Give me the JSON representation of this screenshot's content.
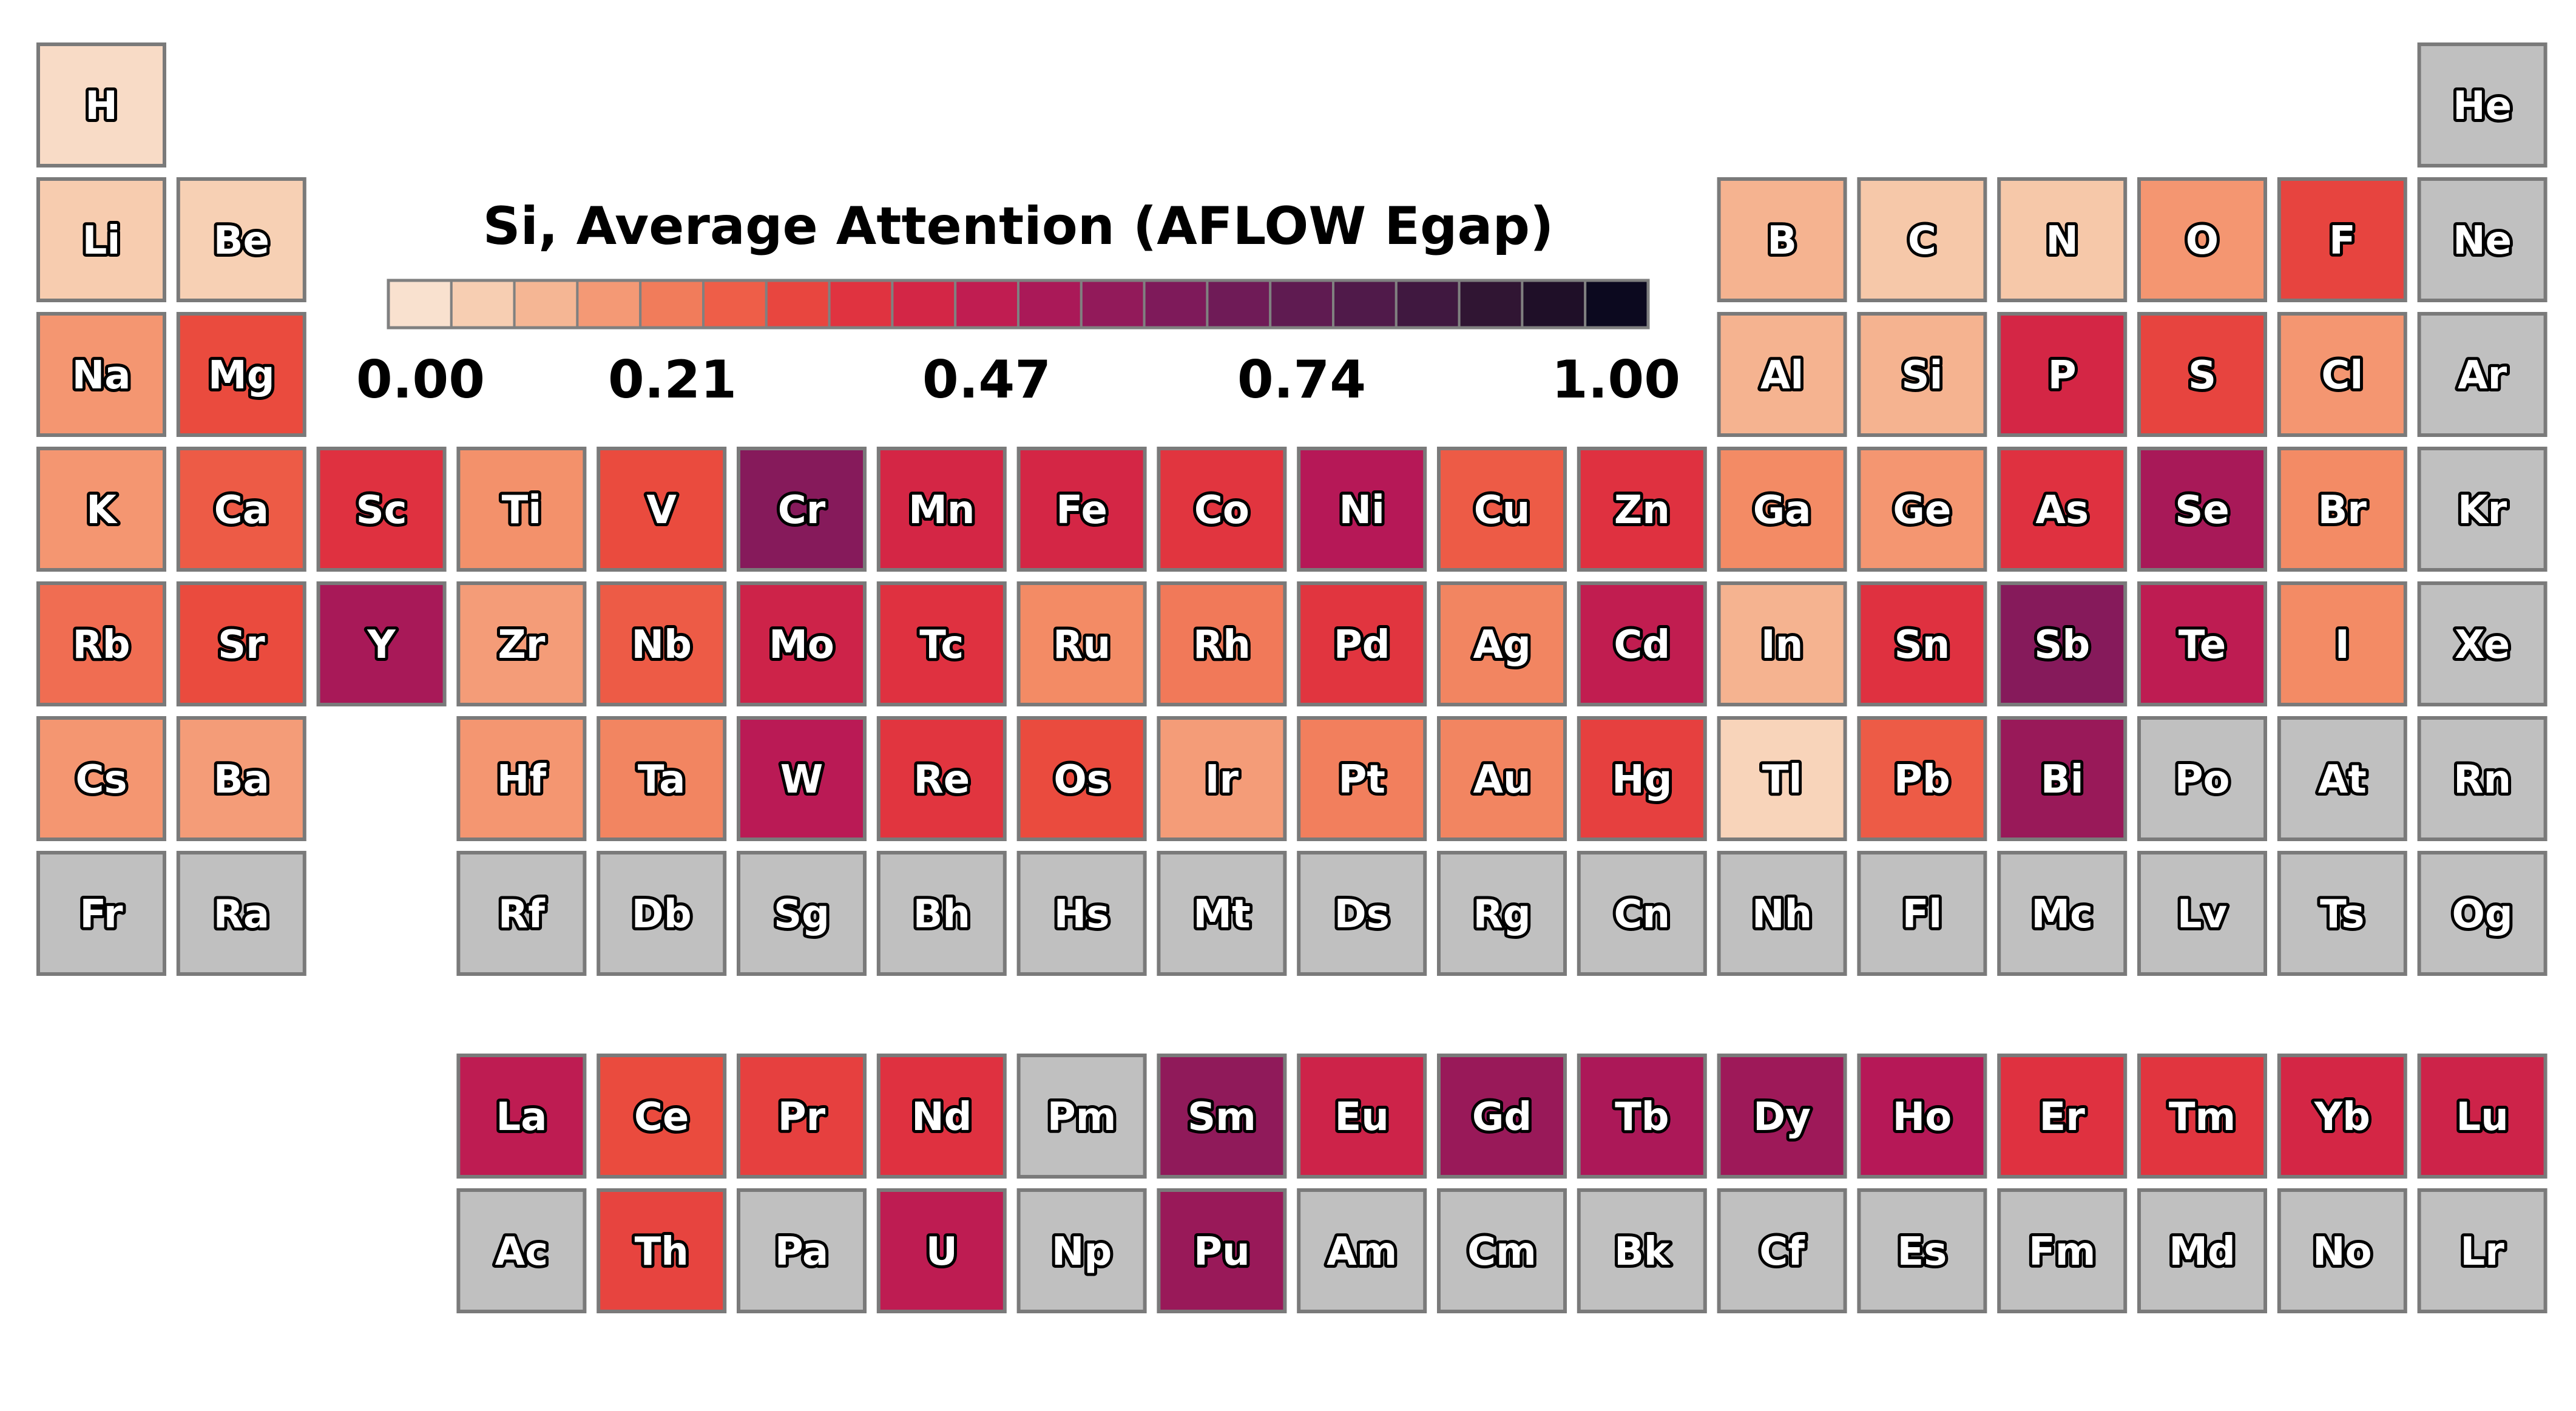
{
  "chart_data": {
    "type": "heatmap",
    "title": "Si, Average Attention (AFLOW Egap)",
    "colorbar": {
      "ticks": [
        "0.00",
        "0.21",
        "0.47",
        "0.74",
        "1.00"
      ],
      "tick_values": [
        0.0,
        0.21,
        0.47,
        0.74,
        1.0
      ],
      "range": [
        0,
        1
      ],
      "bins": 20,
      "colormap": "rocket_r"
    },
    "missing_color": "#c0c0c0",
    "elements": [
      {
        "symbol": "H",
        "group": 1,
        "period": 1,
        "value": 0.04
      },
      {
        "symbol": "He",
        "group": 18,
        "period": 1,
        "value": null
      },
      {
        "symbol": "Li",
        "group": 1,
        "period": 2,
        "value": 0.08
      },
      {
        "symbol": "Be",
        "group": 2,
        "period": 2,
        "value": 0.07
      },
      {
        "symbol": "B",
        "group": 13,
        "period": 2,
        "value": 0.13
      },
      {
        "symbol": "C",
        "group": 14,
        "period": 2,
        "value": 0.09
      },
      {
        "symbol": "N",
        "group": 15,
        "period": 2,
        "value": 0.09
      },
      {
        "symbol": "O",
        "group": 16,
        "period": 2,
        "value": 0.18
      },
      {
        "symbol": "F",
        "group": 17,
        "period": 2,
        "value": 0.33
      },
      {
        "symbol": "Ne",
        "group": 18,
        "period": 2,
        "value": null
      },
      {
        "symbol": "Na",
        "group": 1,
        "period": 3,
        "value": 0.18
      },
      {
        "symbol": "Mg",
        "group": 2,
        "period": 3,
        "value": 0.31
      },
      {
        "symbol": "Al",
        "group": 13,
        "period": 3,
        "value": 0.13
      },
      {
        "symbol": "Si",
        "group": 14,
        "period": 3,
        "value": 0.13
      },
      {
        "symbol": "P",
        "group": 15,
        "period": 3,
        "value": 0.42
      },
      {
        "symbol": "S",
        "group": 16,
        "period": 3,
        "value": 0.33
      },
      {
        "symbol": "Cl",
        "group": 17,
        "period": 3,
        "value": 0.18
      },
      {
        "symbol": "Ar",
        "group": 18,
        "period": 3,
        "value": null
      },
      {
        "symbol": "K",
        "group": 1,
        "period": 4,
        "value": 0.18
      },
      {
        "symbol": "Ca",
        "group": 2,
        "period": 4,
        "value": 0.28
      },
      {
        "symbol": "Sc",
        "group": 3,
        "period": 4,
        "value": 0.38
      },
      {
        "symbol": "Ti",
        "group": 4,
        "period": 4,
        "value": 0.19
      },
      {
        "symbol": "V",
        "group": 5,
        "period": 4,
        "value": 0.31
      },
      {
        "symbol": "Cr",
        "group": 6,
        "period": 4,
        "value": 0.6
      },
      {
        "symbol": "Mn",
        "group": 7,
        "period": 4,
        "value": 0.42
      },
      {
        "symbol": "Fe",
        "group": 8,
        "period": 4,
        "value": 0.42
      },
      {
        "symbol": "Co",
        "group": 9,
        "period": 4,
        "value": 0.37
      },
      {
        "symbol": "Ni",
        "group": 10,
        "period": 4,
        "value": 0.5
      },
      {
        "symbol": "Cu",
        "group": 11,
        "period": 4,
        "value": 0.28
      },
      {
        "symbol": "Zn",
        "group": 12,
        "period": 4,
        "value": 0.38
      },
      {
        "symbol": "Ga",
        "group": 13,
        "period": 4,
        "value": 0.2
      },
      {
        "symbol": "Ge",
        "group": 14,
        "period": 4,
        "value": 0.18
      },
      {
        "symbol": "As",
        "group": 15,
        "period": 4,
        "value": 0.38
      },
      {
        "symbol": "Se",
        "group": 16,
        "period": 4,
        "value": 0.53
      },
      {
        "symbol": "Br",
        "group": 17,
        "period": 4,
        "value": 0.2
      },
      {
        "symbol": "Kr",
        "group": 18,
        "period": 4,
        "value": null
      },
      {
        "symbol": "Rb",
        "group": 1,
        "period": 5,
        "value": 0.25
      },
      {
        "symbol": "Sr",
        "group": 2,
        "period": 5,
        "value": 0.31
      },
      {
        "symbol": "Y",
        "group": 3,
        "period": 5,
        "value": 0.53
      },
      {
        "symbol": "Zr",
        "group": 4,
        "period": 5,
        "value": 0.17
      },
      {
        "symbol": "Nb",
        "group": 5,
        "period": 5,
        "value": 0.28
      },
      {
        "symbol": "Mo",
        "group": 6,
        "period": 5,
        "value": 0.44
      },
      {
        "symbol": "Tc",
        "group": 7,
        "period": 5,
        "value": 0.38
      },
      {
        "symbol": "Ru",
        "group": 8,
        "period": 5,
        "value": 0.2
      },
      {
        "symbol": "Rh",
        "group": 9,
        "period": 5,
        "value": 0.23
      },
      {
        "symbol": "Pd",
        "group": 10,
        "period": 5,
        "value": 0.37
      },
      {
        "symbol": "Ag",
        "group": 11,
        "period": 5,
        "value": 0.21
      },
      {
        "symbol": "Cd",
        "group": 12,
        "period": 5,
        "value": 0.47
      },
      {
        "symbol": "In",
        "group": 13,
        "period": 5,
        "value": 0.13
      },
      {
        "symbol": "Sn",
        "group": 14,
        "period": 5,
        "value": 0.38
      },
      {
        "symbol": "Sb",
        "group": 15,
        "period": 5,
        "value": 0.6
      },
      {
        "symbol": "Te",
        "group": 16,
        "period": 5,
        "value": 0.48
      },
      {
        "symbol": "I",
        "group": 17,
        "period": 5,
        "value": 0.2
      },
      {
        "symbol": "Xe",
        "group": 18,
        "period": 5,
        "value": null
      },
      {
        "symbol": "Cs",
        "group": 1,
        "period": 6,
        "value": 0.18
      },
      {
        "symbol": "Ba",
        "group": 2,
        "period": 6,
        "value": 0.17
      },
      {
        "symbol": "Hf",
        "group": 4,
        "period": 6,
        "value": 0.18
      },
      {
        "symbol": "Ta",
        "group": 5,
        "period": 6,
        "value": 0.21
      },
      {
        "symbol": "W",
        "group": 6,
        "period": 6,
        "value": 0.49
      },
      {
        "symbol": "Re",
        "group": 7,
        "period": 6,
        "value": 0.37
      },
      {
        "symbol": "Os",
        "group": 8,
        "period": 6,
        "value": 0.31
      },
      {
        "symbol": "Ir",
        "group": 9,
        "period": 6,
        "value": 0.17
      },
      {
        "symbol": "Pt",
        "group": 10,
        "period": 6,
        "value": 0.22
      },
      {
        "symbol": "Au",
        "group": 11,
        "period": 6,
        "value": 0.21
      },
      {
        "symbol": "Hg",
        "group": 12,
        "period": 6,
        "value": 0.34
      },
      {
        "symbol": "Tl",
        "group": 13,
        "period": 6,
        "value": 0.06
      },
      {
        "symbol": "Pb",
        "group": 14,
        "period": 6,
        "value": 0.28
      },
      {
        "symbol": "Bi",
        "group": 15,
        "period": 6,
        "value": 0.56
      },
      {
        "symbol": "Po",
        "group": 16,
        "period": 6,
        "value": null
      },
      {
        "symbol": "At",
        "group": 17,
        "period": 6,
        "value": null
      },
      {
        "symbol": "Rn",
        "group": 18,
        "period": 6,
        "value": null
      },
      {
        "symbol": "Fr",
        "group": 1,
        "period": 7,
        "value": null
      },
      {
        "symbol": "Ra",
        "group": 2,
        "period": 7,
        "value": null
      },
      {
        "symbol": "Rf",
        "group": 4,
        "period": 7,
        "value": null
      },
      {
        "symbol": "Db",
        "group": 5,
        "period": 7,
        "value": null
      },
      {
        "symbol": "Sg",
        "group": 6,
        "period": 7,
        "value": null
      },
      {
        "symbol": "Bh",
        "group": 7,
        "period": 7,
        "value": null
      },
      {
        "symbol": "Hs",
        "group": 8,
        "period": 7,
        "value": null
      },
      {
        "symbol": "Mt",
        "group": 9,
        "period": 7,
        "value": null
      },
      {
        "symbol": "Ds",
        "group": 10,
        "period": 7,
        "value": null
      },
      {
        "symbol": "Rg",
        "group": 11,
        "period": 7,
        "value": null
      },
      {
        "symbol": "Cn",
        "group": 12,
        "period": 7,
        "value": null
      },
      {
        "symbol": "Nh",
        "group": 13,
        "period": 7,
        "value": null
      },
      {
        "symbol": "Fl",
        "group": 14,
        "period": 7,
        "value": null
      },
      {
        "symbol": "Mc",
        "group": 15,
        "period": 7,
        "value": null
      },
      {
        "symbol": "Lv",
        "group": 16,
        "period": 7,
        "value": null
      },
      {
        "symbol": "Ts",
        "group": 17,
        "period": 7,
        "value": null
      },
      {
        "symbol": "Og",
        "group": 18,
        "period": 7,
        "value": null
      },
      {
        "symbol": "La",
        "group": 4,
        "period": 9,
        "value": 0.48
      },
      {
        "symbol": "Ce",
        "group": 5,
        "period": 9,
        "value": 0.31
      },
      {
        "symbol": "Pr",
        "group": 6,
        "period": 9,
        "value": 0.34
      },
      {
        "symbol": "Nd",
        "group": 7,
        "period": 9,
        "value": 0.38
      },
      {
        "symbol": "Pm",
        "group": 8,
        "period": 9,
        "value": null
      },
      {
        "symbol": "Sm",
        "group": 9,
        "period": 9,
        "value": 0.58
      },
      {
        "symbol": "Eu",
        "group": 10,
        "period": 9,
        "value": 0.44
      },
      {
        "symbol": "Gd",
        "group": 11,
        "period": 9,
        "value": 0.56
      },
      {
        "symbol": "Tb",
        "group": 12,
        "period": 9,
        "value": 0.52
      },
      {
        "symbol": "Dy",
        "group": 13,
        "period": 9,
        "value": 0.55
      },
      {
        "symbol": "Ho",
        "group": 14,
        "period": 9,
        "value": 0.5
      },
      {
        "symbol": "Er",
        "group": 15,
        "period": 9,
        "value": 0.38
      },
      {
        "symbol": "Tm",
        "group": 16,
        "period": 9,
        "value": 0.37
      },
      {
        "symbol": "Yb",
        "group": 17,
        "period": 9,
        "value": 0.42
      },
      {
        "symbol": "Lu",
        "group": 18,
        "period": 9,
        "value": 0.44
      },
      {
        "symbol": "Ac",
        "group": 4,
        "period": 10,
        "value": null
      },
      {
        "symbol": "Th",
        "group": 5,
        "period": 10,
        "value": 0.33
      },
      {
        "symbol": "Pa",
        "group": 6,
        "period": 10,
        "value": null
      },
      {
        "symbol": "U",
        "group": 7,
        "period": 10,
        "value": 0.48
      },
      {
        "symbol": "Np",
        "group": 8,
        "period": 10,
        "value": null
      },
      {
        "symbol": "Pu",
        "group": 9,
        "period": 10,
        "value": 0.56
      },
      {
        "symbol": "Am",
        "group": 10,
        "period": 10,
        "value": null
      },
      {
        "symbol": "Cm",
        "group": 11,
        "period": 10,
        "value": null
      },
      {
        "symbol": "Bk",
        "group": 12,
        "period": 10,
        "value": null
      },
      {
        "symbol": "Cf",
        "group": 13,
        "period": 10,
        "value": null
      },
      {
        "symbol": "Es",
        "group": 14,
        "period": 10,
        "value": null
      },
      {
        "symbol": "Fm",
        "group": 15,
        "period": 10,
        "value": null
      },
      {
        "symbol": "Md",
        "group": 16,
        "period": 10,
        "value": null
      },
      {
        "symbol": "No",
        "group": 17,
        "period": 10,
        "value": null
      },
      {
        "symbol": "Lr",
        "group": 18,
        "period": 10,
        "value": null
      }
    ]
  }
}
